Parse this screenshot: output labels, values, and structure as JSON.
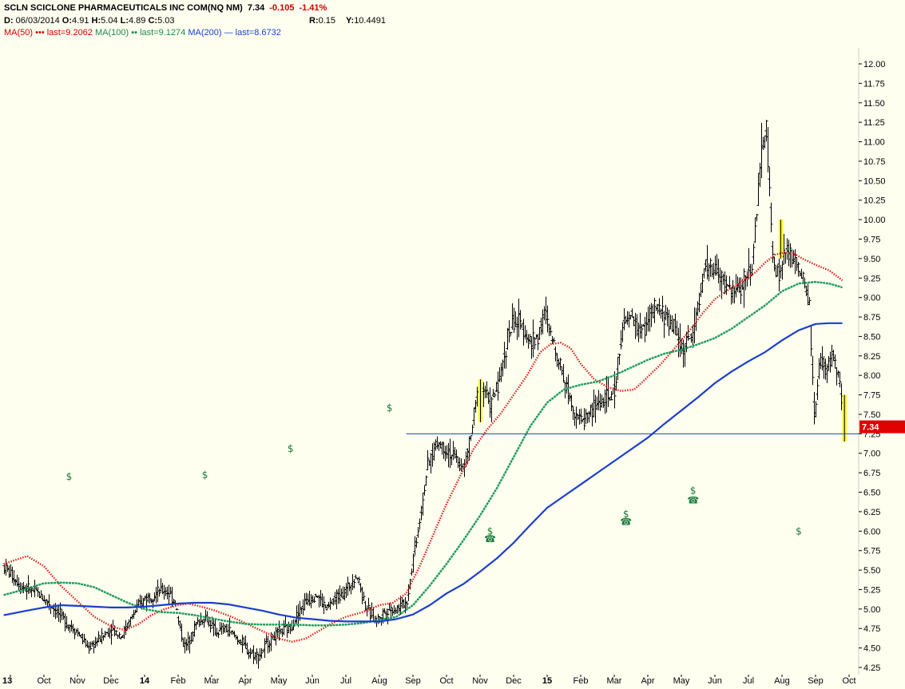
{
  "header": {
    "symbol_line": "SCLN SCICLONE PHARMACEUTICALS INC COM(NQ NM)",
    "last_price": "7.34",
    "change": "-0.105",
    "change_pct": "-1.41%",
    "date_label": "D:",
    "date": "06/03/2014",
    "open_label": "O:",
    "open": "4.91",
    "high_label": "H:",
    "high": "5.04",
    "low_label": "L:",
    "low": "4.89",
    "close_label": "C:",
    "close": "5.03",
    "r_label": "R:",
    "r": "0.15",
    "y_label": "Y:",
    "y": "10.4491"
  },
  "legend": {
    "ma50": "MA(50)",
    "ma50_last": "last=9.2062",
    "ma100": "MA(100)",
    "ma100_last": "last=9.1274",
    "ma200": "MA(200)",
    "ma200_last": "last=8.6732"
  },
  "colors": {
    "background": "#fffff0",
    "price_bars": "#000000",
    "ma50": "#e02020",
    "ma100": "#1a9a5a",
    "ma200": "#1a3ecf",
    "last_price_box": "#e00000",
    "highlight": "#ffff00",
    "event": "#1a7a3a",
    "last_line": "#1a3ecf"
  },
  "chart_data": {
    "type": "line",
    "title": "SCLN SCICLONE PHARMACEUTICALS INC COM(NQ NM)",
    "xlabel": "",
    "ylabel": "",
    "ylim": [
      4.2,
      12.25
    ],
    "y_ticks": [
      "4.25",
      "4.50",
      "4.75",
      "5.00",
      "5.25",
      "5.50",
      "5.75",
      "6.00",
      "6.25",
      "6.50",
      "6.75",
      "7.00",
      "7.25",
      "7.50",
      "7.75",
      "8.00",
      "8.25",
      "8.50",
      "8.75",
      "9.00",
      "9.25",
      "9.50",
      "9.75",
      "10.00",
      "10.25",
      "10.50",
      "10.75",
      "11.00",
      "11.25",
      "11.50",
      "11.75",
      "12.00"
    ],
    "x_range_months": [
      0,
      25.9
    ],
    "x_ticks": [
      {
        "label": "13",
        "month": 0,
        "bold": true
      },
      {
        "label": "Oct",
        "month": 1,
        "bold": false
      },
      {
        "label": "Nov",
        "month": 2,
        "bold": false
      },
      {
        "label": "Dec",
        "month": 3,
        "bold": false
      },
      {
        "label": "14",
        "month": 4,
        "bold": true
      },
      {
        "label": "Feb",
        "month": 5,
        "bold": false
      },
      {
        "label": "Mar",
        "month": 6,
        "bold": false
      },
      {
        "label": "Apr",
        "month": 7,
        "bold": false
      },
      {
        "label": "May",
        "month": 8,
        "bold": false
      },
      {
        "label": "Jun",
        "month": 9,
        "bold": false
      },
      {
        "label": "Jul",
        "month": 10,
        "bold": false
      },
      {
        "label": "Aug",
        "month": 11,
        "bold": false
      },
      {
        "label": "Sep",
        "month": 12,
        "bold": false
      },
      {
        "label": "Oct",
        "month": 13,
        "bold": false
      },
      {
        "label": "Nov",
        "month": 14,
        "bold": false
      },
      {
        "label": "Dec",
        "month": 15,
        "bold": false
      },
      {
        "label": "15",
        "month": 16,
        "bold": true
      },
      {
        "label": "Feb",
        "month": 17,
        "bold": false
      },
      {
        "label": "Mar",
        "month": 18,
        "bold": false
      },
      {
        "label": "Apr",
        "month": 19,
        "bold": false
      },
      {
        "label": "May",
        "month": 20,
        "bold": false
      },
      {
        "label": "Jun",
        "month": 21,
        "bold": false
      },
      {
        "label": "Jul",
        "month": 22,
        "bold": false
      },
      {
        "label": "Aug",
        "month": 23,
        "bold": false
      },
      {
        "label": "Sep",
        "month": 24,
        "bold": false
      },
      {
        "label": "Oct",
        "month": 25,
        "bold": false
      }
    ],
    "price_path": [
      [
        -0.2,
        5.55
      ],
      [
        0.3,
        5.3
      ],
      [
        0.8,
        5.2
      ],
      [
        1.2,
        5.05
      ],
      [
        1.6,
        4.85
      ],
      [
        2.0,
        4.7
      ],
      [
        2.3,
        4.5
      ],
      [
        2.6,
        4.6
      ],
      [
        3.0,
        4.75
      ],
      [
        3.3,
        4.65
      ],
      [
        3.6,
        4.9
      ],
      [
        4.0,
        5.15
      ],
      [
        4.3,
        5.2
      ],
      [
        4.6,
        5.25
      ],
      [
        4.9,
        5.1
      ],
      [
        5.0,
        4.8
      ],
      [
        5.2,
        4.5
      ],
      [
        5.5,
        4.8
      ],
      [
        5.8,
        4.9
      ],
      [
        6.1,
        4.7
      ],
      [
        6.4,
        4.75
      ],
      [
        6.8,
        4.6
      ],
      [
        7.1,
        4.45
      ],
      [
        7.4,
        4.4
      ],
      [
        7.7,
        4.6
      ],
      [
        8.0,
        4.7
      ],
      [
        8.3,
        4.75
      ],
      [
        8.5,
        4.9
      ],
      [
        8.8,
        5.1
      ],
      [
        9.1,
        5.2
      ],
      [
        9.4,
        5.0
      ],
      [
        9.7,
        5.15
      ],
      [
        10.0,
        5.25
      ],
      [
        10.3,
        5.45
      ],
      [
        10.6,
        5.0
      ],
      [
        10.9,
        4.85
      ],
      [
        11.2,
        5.0
      ],
      [
        11.5,
        5.0
      ],
      [
        11.8,
        5.1
      ],
      [
        12.0,
        5.7
      ],
      [
        12.2,
        6.2
      ],
      [
        12.4,
        6.8
      ],
      [
        12.7,
        7.15
      ],
      [
        13.0,
        7.05
      ],
      [
        13.3,
        6.9
      ],
      [
        13.5,
        6.8
      ],
      [
        13.7,
        7.2
      ],
      [
        13.9,
        7.75
      ],
      [
        14.1,
        7.85
      ],
      [
        14.3,
        7.6
      ],
      [
        14.6,
        8.0
      ],
      [
        14.8,
        8.5
      ],
      [
        15.0,
        8.7
      ],
      [
        15.3,
        8.6
      ],
      [
        15.5,
        8.4
      ],
      [
        15.7,
        8.5
      ],
      [
        15.9,
        8.8
      ],
      [
        16.1,
        8.5
      ],
      [
        16.4,
        8.1
      ],
      [
        16.6,
        7.8
      ],
      [
        16.8,
        7.55
      ],
      [
        17.0,
        7.4
      ],
      [
        17.2,
        7.5
      ],
      [
        17.5,
        7.65
      ],
      [
        17.8,
        7.7
      ],
      [
        18.0,
        7.8
      ],
      [
        18.2,
        8.6
      ],
      [
        18.5,
        8.75
      ],
      [
        18.8,
        8.55
      ],
      [
        19.0,
        8.75
      ],
      [
        19.3,
        8.85
      ],
      [
        19.6,
        8.7
      ],
      [
        19.8,
        8.6
      ],
      [
        20.0,
        8.35
      ],
      [
        20.3,
        8.5
      ],
      [
        20.5,
        8.95
      ],
      [
        20.7,
        9.4
      ],
      [
        21.0,
        9.35
      ],
      [
        21.3,
        9.15
      ],
      [
        21.6,
        9.05
      ],
      [
        21.9,
        9.25
      ],
      [
        22.1,
        9.45
      ],
      [
        22.3,
        10.5
      ],
      [
        22.5,
        11.3
      ],
      [
        22.7,
        9.5
      ],
      [
        22.9,
        9.3
      ],
      [
        23.1,
        9.6
      ],
      [
        23.4,
        9.45
      ],
      [
        23.6,
        9.2
      ],
      [
        23.8,
        8.9
      ],
      [
        23.95,
        7.35
      ],
      [
        24.1,
        8.2
      ],
      [
        24.3,
        8.05
      ],
      [
        24.5,
        8.3
      ],
      [
        24.7,
        7.85
      ],
      [
        24.85,
        7.34
      ]
    ],
    "bar_volatility": 0.12,
    "highlight_bars": [
      {
        "month": 14.0,
        "low": 7.4,
        "high": 7.95
      },
      {
        "month": 22.95,
        "low": 9.5,
        "high": 10.0
      },
      {
        "month": 24.85,
        "low": 7.15,
        "high": 7.75
      }
    ],
    "series": [
      {
        "name": "MA(50)",
        "style": "dotted",
        "last": 9.2062,
        "points": [
          [
            -0.2,
            5.58
          ],
          [
            0.5,
            5.68
          ],
          [
            1.0,
            5.55
          ],
          [
            1.5,
            5.3
          ],
          [
            2.0,
            5.1
          ],
          [
            2.5,
            4.9
          ],
          [
            3.0,
            4.78
          ],
          [
            3.4,
            4.73
          ],
          [
            3.8,
            4.8
          ],
          [
            4.2,
            4.92
          ],
          [
            4.6,
            5.0
          ],
          [
            5.0,
            5.05
          ],
          [
            5.3,
            5.07
          ],
          [
            5.7,
            5.03
          ],
          [
            6.1,
            4.98
          ],
          [
            6.6,
            4.9
          ],
          [
            7.0,
            4.82
          ],
          [
            7.5,
            4.72
          ],
          [
            8.0,
            4.62
          ],
          [
            8.4,
            4.58
          ],
          [
            8.8,
            4.62
          ],
          [
            9.2,
            4.72
          ],
          [
            9.6,
            4.82
          ],
          [
            10.0,
            4.9
          ],
          [
            10.5,
            4.96
          ],
          [
            11.0,
            5.05
          ],
          [
            11.4,
            5.08
          ],
          [
            11.8,
            5.2
          ],
          [
            12.2,
            5.55
          ],
          [
            12.6,
            5.95
          ],
          [
            13.0,
            6.35
          ],
          [
            13.4,
            6.7
          ],
          [
            13.8,
            7.05
          ],
          [
            14.2,
            7.3
          ],
          [
            14.6,
            7.5
          ],
          [
            15.0,
            7.75
          ],
          [
            15.4,
            8.0
          ],
          [
            15.8,
            8.3
          ],
          [
            16.1,
            8.4
          ],
          [
            16.4,
            8.42
          ],
          [
            16.7,
            8.35
          ],
          [
            17.0,
            8.15
          ],
          [
            17.4,
            7.95
          ],
          [
            17.8,
            7.85
          ],
          [
            18.2,
            7.8
          ],
          [
            18.6,
            7.82
          ],
          [
            19.0,
            7.98
          ],
          [
            19.4,
            8.15
          ],
          [
            19.8,
            8.35
          ],
          [
            20.2,
            8.55
          ],
          [
            20.6,
            8.78
          ],
          [
            21.0,
            8.98
          ],
          [
            21.4,
            9.1
          ],
          [
            21.8,
            9.2
          ],
          [
            22.2,
            9.32
          ],
          [
            22.5,
            9.45
          ],
          [
            22.8,
            9.55
          ],
          [
            23.1,
            9.58
          ],
          [
            23.4,
            9.55
          ],
          [
            23.7,
            9.48
          ],
          [
            24.0,
            9.42
          ],
          [
            24.4,
            9.35
          ],
          [
            24.8,
            9.22
          ]
        ]
      },
      {
        "name": "MA(100)",
        "style": "dashed",
        "last": 9.1274,
        "points": [
          [
            -0.2,
            5.18
          ],
          [
            0.4,
            5.25
          ],
          [
            1.0,
            5.33
          ],
          [
            1.5,
            5.34
          ],
          [
            2.0,
            5.33
          ],
          [
            2.5,
            5.28
          ],
          [
            3.0,
            5.18
          ],
          [
            3.5,
            5.08
          ],
          [
            4.0,
            5.0
          ],
          [
            4.5,
            4.96
          ],
          [
            5.0,
            4.95
          ],
          [
            5.5,
            4.92
          ],
          [
            6.0,
            4.88
          ],
          [
            6.5,
            4.84
          ],
          [
            7.0,
            4.81
          ],
          [
            7.5,
            4.8
          ],
          [
            8.0,
            4.8
          ],
          [
            8.5,
            4.8
          ],
          [
            9.0,
            4.79
          ],
          [
            9.5,
            4.79
          ],
          [
            10.0,
            4.8
          ],
          [
            10.5,
            4.82
          ],
          [
            11.0,
            4.86
          ],
          [
            11.5,
            4.9
          ],
          [
            12.0,
            5.05
          ],
          [
            12.5,
            5.3
          ],
          [
            13.0,
            5.58
          ],
          [
            13.5,
            5.88
          ],
          [
            14.0,
            6.2
          ],
          [
            14.5,
            6.55
          ],
          [
            15.0,
            6.95
          ],
          [
            15.5,
            7.35
          ],
          [
            16.0,
            7.65
          ],
          [
            16.5,
            7.82
          ],
          [
            17.0,
            7.88
          ],
          [
            17.5,
            7.92
          ],
          [
            18.0,
            8.0
          ],
          [
            18.5,
            8.1
          ],
          [
            19.0,
            8.2
          ],
          [
            19.5,
            8.28
          ],
          [
            20.0,
            8.33
          ],
          [
            20.5,
            8.4
          ],
          [
            21.0,
            8.48
          ],
          [
            21.5,
            8.6
          ],
          [
            22.0,
            8.75
          ],
          [
            22.5,
            8.9
          ],
          [
            23.0,
            9.08
          ],
          [
            23.5,
            9.18
          ],
          [
            24.0,
            9.2
          ],
          [
            24.4,
            9.18
          ],
          [
            24.8,
            9.13
          ]
        ]
      },
      {
        "name": "MA(200)",
        "style": "solid",
        "last": 8.6732,
        "points": [
          [
            -0.2,
            4.92
          ],
          [
            0.5,
            4.98
          ],
          [
            1.0,
            5.02
          ],
          [
            1.5,
            5.05
          ],
          [
            2.0,
            5.04
          ],
          [
            2.5,
            5.03
          ],
          [
            3.0,
            5.02
          ],
          [
            3.5,
            5.02
          ],
          [
            4.0,
            5.03
          ],
          [
            4.5,
            5.05
          ],
          [
            5.0,
            5.07
          ],
          [
            5.5,
            5.08
          ],
          [
            6.0,
            5.08
          ],
          [
            6.5,
            5.06
          ],
          [
            7.0,
            5.02
          ],
          [
            7.5,
            4.98
          ],
          [
            8.0,
            4.93
          ],
          [
            8.5,
            4.89
          ],
          [
            9.0,
            4.87
          ],
          [
            9.5,
            4.85
          ],
          [
            10.0,
            4.84
          ],
          [
            10.5,
            4.84
          ],
          [
            11.0,
            4.84
          ],
          [
            11.5,
            4.87
          ],
          [
            12.0,
            4.93
          ],
          [
            12.5,
            5.05
          ],
          [
            13.0,
            5.2
          ],
          [
            13.5,
            5.32
          ],
          [
            14.0,
            5.48
          ],
          [
            14.5,
            5.65
          ],
          [
            15.0,
            5.85
          ],
          [
            15.5,
            6.08
          ],
          [
            16.0,
            6.3
          ],
          [
            16.5,
            6.45
          ],
          [
            17.0,
            6.6
          ],
          [
            17.5,
            6.75
          ],
          [
            18.0,
            6.9
          ],
          [
            18.5,
            7.05
          ],
          [
            19.0,
            7.2
          ],
          [
            19.5,
            7.38
          ],
          [
            20.0,
            7.55
          ],
          [
            20.5,
            7.72
          ],
          [
            21.0,
            7.9
          ],
          [
            21.5,
            8.05
          ],
          [
            22.0,
            8.18
          ],
          [
            22.5,
            8.3
          ],
          [
            23.0,
            8.45
          ],
          [
            23.5,
            8.58
          ],
          [
            24.0,
            8.66
          ],
          [
            24.4,
            8.67
          ],
          [
            24.8,
            8.67
          ]
        ]
      }
    ],
    "horizontal_line": {
      "value": 7.25,
      "from_month": 11.8
    },
    "last_price_label": "7.34",
    "events": [
      {
        "month": 1.75,
        "value": 6.7,
        "kind": "dividend",
        "label": "$"
      },
      {
        "month": 5.8,
        "value": 6.72,
        "kind": "dividend",
        "label": "$"
      },
      {
        "month": 8.35,
        "value": 7.06,
        "kind": "dividend",
        "label": "$"
      },
      {
        "month": 11.3,
        "value": 7.58,
        "kind": "dividend",
        "label": "$"
      },
      {
        "month": 14.3,
        "value": 6.0,
        "kind": "dividend",
        "label": "$"
      },
      {
        "month": 14.3,
        "value": 5.9,
        "kind": "earnings",
        "label": "☎"
      },
      {
        "month": 18.35,
        "value": 6.22,
        "kind": "dividend",
        "label": "$"
      },
      {
        "month": 18.35,
        "value": 6.12,
        "kind": "earnings",
        "label": "☎"
      },
      {
        "month": 20.35,
        "value": 6.52,
        "kind": "dividend",
        "label": "$"
      },
      {
        "month": 20.35,
        "value": 6.4,
        "kind": "earnings",
        "label": "☎"
      },
      {
        "month": 23.5,
        "value": 6.0,
        "kind": "dividend",
        "label": "$"
      }
    ]
  }
}
